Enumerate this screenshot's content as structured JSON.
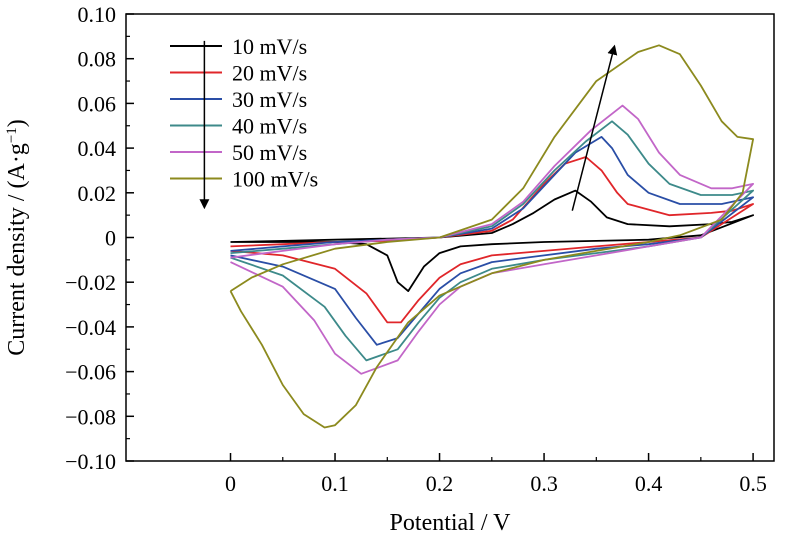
{
  "chart_data": {
    "type": "line",
    "xlabel": "Potential / V",
    "ylabel": "Current density / (A·g",
    "ylabel_sup": "−1",
    "ylabel_close": ")",
    "xlim": [
      -0.1,
      0.52
    ],
    "ylim": [
      -0.1,
      0.1
    ],
    "x_ticks": [
      0,
      0.1,
      0.2,
      0.3,
      0.4,
      0.5
    ],
    "x_tick_labels": [
      "0",
      "0.1",
      "0.2",
      "0.3",
      "0.4",
      "0.5"
    ],
    "y_ticks": [
      -0.1,
      -0.08,
      -0.06,
      -0.04,
      -0.02,
      0,
      0.02,
      0.04,
      0.06,
      0.08,
      0.1
    ],
    "y_tick_labels": [
      "−0.10",
      "−0.08",
      "−0.06",
      "−0.04",
      "−0.02",
      "0",
      "0.02",
      "0.04",
      "0.06",
      "0.08",
      "0.10"
    ],
    "grid": false,
    "legend_position": "top-left",
    "annotations": [
      {
        "type": "arrow",
        "from": [
          -0.025,
          0.088
        ],
        "to": [
          -0.025,
          0.014
        ]
      },
      {
        "type": "arrow",
        "from": [
          0.327,
          0.012
        ],
        "to": [
          0.367,
          0.085
        ]
      }
    ],
    "series": [
      {
        "name": "10 mV/s",
        "color": "#000000",
        "upper": [
          [
            0,
            -0.002
          ],
          [
            0.05,
            -0.0015
          ],
          [
            0.1,
            -0.001
          ],
          [
            0.15,
            -0.0005
          ],
          [
            0.2,
            0
          ],
          [
            0.25,
            0.002
          ],
          [
            0.27,
            0.006
          ],
          [
            0.29,
            0.011
          ],
          [
            0.31,
            0.017
          ],
          [
            0.33,
            0.021
          ],
          [
            0.345,
            0.016
          ],
          [
            0.36,
            0.009
          ],
          [
            0.38,
            0.006
          ],
          [
            0.42,
            0.005
          ],
          [
            0.46,
            0.006
          ],
          [
            0.48,
            0.007
          ],
          [
            0.5,
            0.01
          ]
        ],
        "lower": [
          [
            0.5,
            0.01
          ],
          [
            0.45,
            0.001
          ],
          [
            0.4,
            -0.001
          ],
          [
            0.35,
            -0.0015
          ],
          [
            0.3,
            -0.002
          ],
          [
            0.25,
            -0.003
          ],
          [
            0.22,
            -0.004
          ],
          [
            0.2,
            -0.007
          ],
          [
            0.185,
            -0.013
          ],
          [
            0.17,
            -0.024
          ],
          [
            0.16,
            -0.02
          ],
          [
            0.15,
            -0.008
          ],
          [
            0.13,
            -0.003
          ],
          [
            0.1,
            -0.002
          ],
          [
            0.05,
            -0.002
          ],
          [
            0,
            -0.002
          ]
        ]
      },
      {
        "name": "20 mV/s",
        "color": "#e0262a",
        "upper": [
          [
            0,
            -0.004
          ],
          [
            0.05,
            -0.003
          ],
          [
            0.1,
            -0.002
          ],
          [
            0.15,
            -0.0015
          ],
          [
            0.2,
            0
          ],
          [
            0.25,
            0.003
          ],
          [
            0.27,
            0.008
          ],
          [
            0.3,
            0.024
          ],
          [
            0.32,
            0.033
          ],
          [
            0.34,
            0.036
          ],
          [
            0.355,
            0.03
          ],
          [
            0.37,
            0.02
          ],
          [
            0.38,
            0.015
          ],
          [
            0.42,
            0.01
          ],
          [
            0.46,
            0.011
          ],
          [
            0.48,
            0.012
          ],
          [
            0.5,
            0.015
          ]
        ],
        "lower": [
          [
            0.5,
            0.015
          ],
          [
            0.45,
            0
          ],
          [
            0.4,
            -0.002
          ],
          [
            0.35,
            -0.004
          ],
          [
            0.3,
            -0.006
          ],
          [
            0.25,
            -0.008
          ],
          [
            0.22,
            -0.012
          ],
          [
            0.2,
            -0.018
          ],
          [
            0.18,
            -0.028
          ],
          [
            0.163,
            -0.038
          ],
          [
            0.15,
            -0.038
          ],
          [
            0.13,
            -0.025
          ],
          [
            0.1,
            -0.014
          ],
          [
            0.05,
            -0.008
          ],
          [
            0,
            -0.006
          ]
        ]
      },
      {
        "name": "30 mV/s",
        "color": "#2a4ea6",
        "upper": [
          [
            0,
            -0.006
          ],
          [
            0.05,
            -0.004
          ],
          [
            0.1,
            -0.002
          ],
          [
            0.15,
            -0.001
          ],
          [
            0.2,
            0
          ],
          [
            0.25,
            0.004
          ],
          [
            0.28,
            0.013
          ],
          [
            0.31,
            0.028
          ],
          [
            0.33,
            0.038
          ],
          [
            0.355,
            0.045
          ],
          [
            0.365,
            0.04
          ],
          [
            0.38,
            0.028
          ],
          [
            0.4,
            0.02
          ],
          [
            0.43,
            0.015
          ],
          [
            0.47,
            0.015
          ],
          [
            0.5,
            0.018
          ]
        ],
        "lower": [
          [
            0.5,
            0.018
          ],
          [
            0.45,
            0
          ],
          [
            0.4,
            -0.003
          ],
          [
            0.35,
            -0.005
          ],
          [
            0.3,
            -0.008
          ],
          [
            0.25,
            -0.011
          ],
          [
            0.22,
            -0.016
          ],
          [
            0.2,
            -0.023
          ],
          [
            0.18,
            -0.034
          ],
          [
            0.16,
            -0.045
          ],
          [
            0.14,
            -0.048
          ],
          [
            0.12,
            -0.036
          ],
          [
            0.1,
            -0.023
          ],
          [
            0.05,
            -0.013
          ],
          [
            0,
            -0.008
          ]
        ]
      },
      {
        "name": "40 mV/s",
        "color": "#3d8a8a",
        "upper": [
          [
            0,
            -0.007
          ],
          [
            0.05,
            -0.005
          ],
          [
            0.1,
            -0.003
          ],
          [
            0.15,
            -0.001
          ],
          [
            0.2,
            0
          ],
          [
            0.25,
            0.005
          ],
          [
            0.28,
            0.015
          ],
          [
            0.31,
            0.03
          ],
          [
            0.34,
            0.043
          ],
          [
            0.365,
            0.052
          ],
          [
            0.38,
            0.046
          ],
          [
            0.4,
            0.033
          ],
          [
            0.42,
            0.024
          ],
          [
            0.45,
            0.019
          ],
          [
            0.48,
            0.019
          ],
          [
            0.5,
            0.021
          ]
        ],
        "lower": [
          [
            0.5,
            0.021
          ],
          [
            0.45,
            0
          ],
          [
            0.4,
            -0.004
          ],
          [
            0.35,
            -0.007
          ],
          [
            0.3,
            -0.01
          ],
          [
            0.25,
            -0.014
          ],
          [
            0.22,
            -0.02
          ],
          [
            0.2,
            -0.027
          ],
          [
            0.18,
            -0.038
          ],
          [
            0.16,
            -0.05
          ],
          [
            0.13,
            -0.055
          ],
          [
            0.11,
            -0.044
          ],
          [
            0.09,
            -0.031
          ],
          [
            0.05,
            -0.017
          ],
          [
            0,
            -0.009
          ]
        ]
      },
      {
        "name": "50 mV/s",
        "color": "#c266c8",
        "upper": [
          [
            0,
            -0.009
          ],
          [
            0.05,
            -0.006
          ],
          [
            0.1,
            -0.003
          ],
          [
            0.15,
            -0.001
          ],
          [
            0.2,
            0
          ],
          [
            0.25,
            0.006
          ],
          [
            0.28,
            0.016
          ],
          [
            0.31,
            0.032
          ],
          [
            0.345,
            0.048
          ],
          [
            0.375,
            0.059
          ],
          [
            0.39,
            0.053
          ],
          [
            0.41,
            0.038
          ],
          [
            0.43,
            0.028
          ],
          [
            0.46,
            0.022
          ],
          [
            0.48,
            0.022
          ],
          [
            0.5,
            0.024
          ]
        ],
        "lower": [
          [
            0.5,
            0.024
          ],
          [
            0.45,
            0
          ],
          [
            0.4,
            -0.004
          ],
          [
            0.35,
            -0.008
          ],
          [
            0.3,
            -0.012
          ],
          [
            0.25,
            -0.016
          ],
          [
            0.22,
            -0.022
          ],
          [
            0.2,
            -0.03
          ],
          [
            0.18,
            -0.042
          ],
          [
            0.16,
            -0.055
          ],
          [
            0.125,
            -0.061
          ],
          [
            0.1,
            -0.052
          ],
          [
            0.08,
            -0.037
          ],
          [
            0.05,
            -0.022
          ],
          [
            0,
            -0.011
          ]
        ]
      },
      {
        "name": "100 mV/s",
        "color": "#8c8a1e",
        "upper": [
          [
            0,
            -0.024
          ],
          [
            0.02,
            -0.018
          ],
          [
            0.05,
            -0.012
          ],
          [
            0.1,
            -0.005
          ],
          [
            0.15,
            -0.002
          ],
          [
            0.2,
            0
          ],
          [
            0.25,
            0.008
          ],
          [
            0.28,
            0.022
          ],
          [
            0.31,
            0.045
          ],
          [
            0.35,
            0.07
          ],
          [
            0.39,
            0.083
          ],
          [
            0.41,
            0.086
          ],
          [
            0.43,
            0.082
          ],
          [
            0.45,
            0.068
          ],
          [
            0.47,
            0.052
          ],
          [
            0.485,
            0.045
          ],
          [
            0.5,
            0.044
          ]
        ],
        "lower": [
          [
            0.5,
            0.044
          ],
          [
            0.49,
            0.02
          ],
          [
            0.47,
            0.008
          ],
          [
            0.43,
            0.001
          ],
          [
            0.4,
            -0.002
          ],
          [
            0.35,
            -0.006
          ],
          [
            0.3,
            -0.01
          ],
          [
            0.25,
            -0.016
          ],
          [
            0.2,
            -0.026
          ],
          [
            0.17,
            -0.038
          ],
          [
            0.14,
            -0.058
          ],
          [
            0.12,
            -0.075
          ],
          [
            0.1,
            -0.084
          ],
          [
            0.09,
            -0.085
          ],
          [
            0.07,
            -0.079
          ],
          [
            0.05,
            -0.066
          ],
          [
            0.03,
            -0.048
          ],
          [
            0.01,
            -0.033
          ],
          [
            0,
            -0.024
          ]
        ]
      }
    ]
  }
}
